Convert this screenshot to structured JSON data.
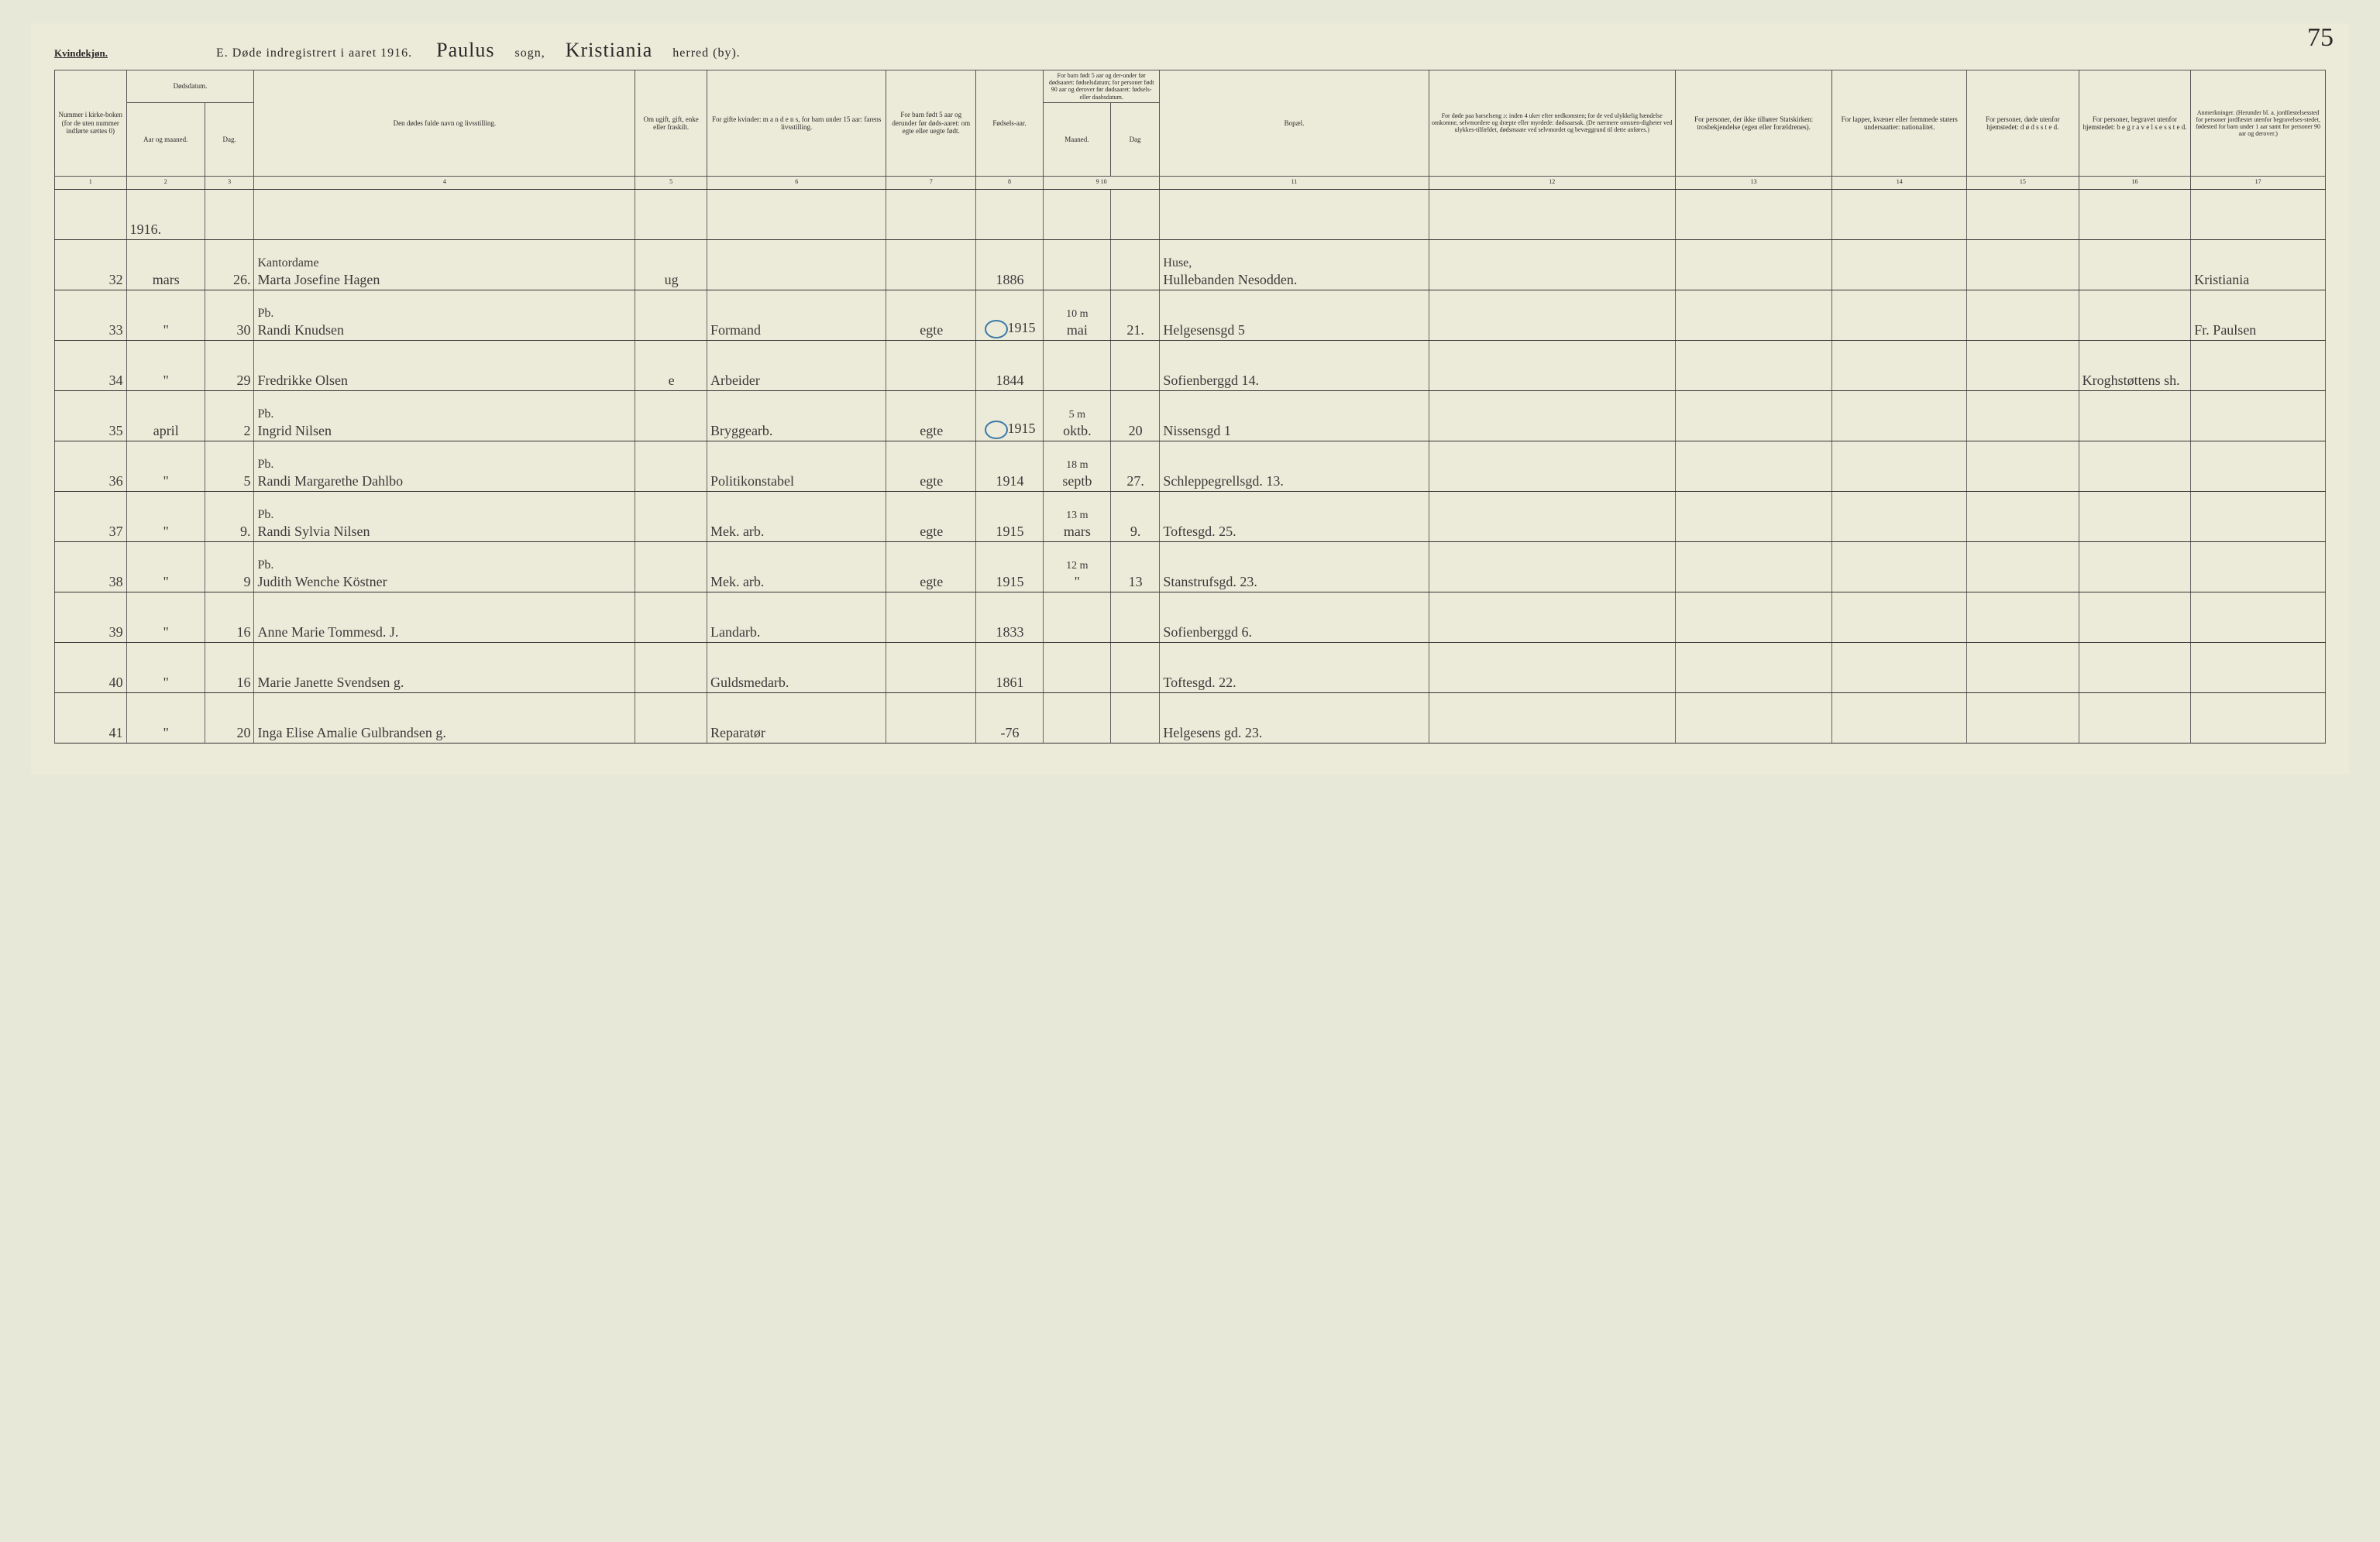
{
  "header": {
    "gender_label": "Kvindekjøn.",
    "title_prefix": "E.",
    "title_main": "Døde indregistrert i aaret 191",
    "year_suffix": "6.",
    "sogn_hw": "Paulus",
    "sogn_label": "sogn,",
    "herred_hw": "Kristiania",
    "herred_label": "herred (by).",
    "page_number": "75"
  },
  "columns": {
    "c1": "Nummer i kirke-boken (for de uten nummer indførte sættes 0)",
    "c2_group": "Dødsdatum.",
    "c2a": "Aar og maaned.",
    "c2b": "Dag.",
    "c4": "Den dødes fulde navn og livsstilling.",
    "c5": "Om ugift, gift, enke eller fraskilt.",
    "c6": "For gifte kvinder: m a n d e n s, for barn under 15 aar: farens livsstilling.",
    "c7": "For barn født 5 aar og derunder før døds-aaret: om egte eller uegte født.",
    "c8": "Fødsels-aar.",
    "c9_10": "For barn født 5 aar og der-under før dødsaaret: fødselsdatum; for personer født 90 aar og derover før dødsaaret: fødsels- eller daabsdatum.",
    "c9": "Maaned.",
    "c10": "Dag",
    "c11": "Bopæl.",
    "c12": "For døde paa barselseng ɔ: inden 4 uker efter nedkomsten; for de ved ulykkelig hændelse omkomne, selvmordere og dræpte eller myrdede: dødsaarsak. (De nærmere omstæn-digheter ved ulykkes-tilfældet, dødsmaate ved selvmordet og bevæggrund til dette anføres.)",
    "c13": "For personer, der ikke tilhører Statskirken: trosbekjendelse (egen eller forældrenes).",
    "c14": "For lapper, kvæner eller fremmede staters undersaatter: nationalitet.",
    "c15": "For personer, døde utenfor hjemstedet: d ø d s s t e d.",
    "c16": "For personer, begravet utenfor hjemstedet: b e g r a v e l s e s s t e d.",
    "c17": "Anmerkninger. (Herunder bl. a. jordfæstelsessted for personer jordfæstet utenfor begravelses-stedet, fødested for barn under 1 aar samt for personer 90 aar og derover.)"
  },
  "colnums": [
    "1",
    "2",
    "3",
    "4",
    "5",
    "6",
    "7",
    "8",
    "9",
    "10",
    "11",
    "12",
    "13",
    "14",
    "15",
    "16",
    "17"
  ],
  "year_in_table": "1916.",
  "rows": [
    {
      "n": "32",
      "mo": "mars",
      "d": "26.",
      "occ": "Kantordame",
      "name": "Marta Josefine Hagen",
      "c5": "ug",
      "c6": "",
      "c7": "",
      "c8": "1886",
      "c9": "",
      "c10": "",
      "c11_top": "Huse,",
      "c11": "Hullebanden Nesodden.",
      "c15": "",
      "c16": "",
      "c17": "Kristiania"
    },
    {
      "n": "33",
      "mo": "\"",
      "d": "30",
      "occ": "Pb.",
      "name": "Randi Knudsen",
      "c5": "",
      "c6": "Formand",
      "c7": "egte",
      "c8": "1915",
      "c9": "mai",
      "c10": "21.",
      "ann": "10 m",
      "c11": "Helgesensgd 5",
      "c17": "Fr. Paulsen"
    },
    {
      "n": "34",
      "mo": "\"",
      "d": "29",
      "occ": "",
      "name": "Fredrikke Olsen",
      "c5": "e",
      "c6": "Arbeider",
      "c7": "",
      "c8": "1844",
      "c9": "",
      "c10": "",
      "c11": "Sofienberggd 14.",
      "c15": "",
      "c16": "Kroghstøttens sh."
    },
    {
      "n": "35",
      "mo": "april",
      "d": "2",
      "occ": "Pb.",
      "name": "Ingrid Nilsen",
      "c5": "",
      "c6": "Bryggearb.",
      "c7": "egte",
      "c8": "1915",
      "c9": "oktb.",
      "c10": "20",
      "ann": "5 m",
      "c11": "Nissensgd 1"
    },
    {
      "n": "36",
      "mo": "\"",
      "d": "5",
      "occ": "Pb.",
      "name": "Randi Margarethe Dahlbo",
      "c5": "",
      "c6": "Politikonstabel",
      "c7": "egte",
      "c8": "1914",
      "c9": "septb",
      "c10": "27.",
      "ann": "18 m",
      "c11": "Schleppegrellsgd. 13."
    },
    {
      "n": "37",
      "mo": "\"",
      "d": "9.",
      "occ": "Pb.",
      "name": "Randi Sylvia Nilsen",
      "c5": "",
      "c6": "Mek. arb.",
      "c7": "egte",
      "c8": "1915",
      "c9": "mars",
      "c10": "9.",
      "ann": "13 m",
      "c11": "Toftesgd. 25."
    },
    {
      "n": "38",
      "mo": "\"",
      "d": "9",
      "occ": "Pb.",
      "name": "Judith Wenche Köstner",
      "c5": "",
      "c6": "Mek. arb.",
      "c7": "egte",
      "c8": "1915",
      "c9": "\"",
      "c10": "13",
      "ann": "12 m",
      "c11": "Stanstrufsgd. 23."
    },
    {
      "n": "39",
      "mo": "\"",
      "d": "16",
      "occ": "",
      "name": "Anne Marie Tommesd. J.",
      "c5": "",
      "c6": "Landarb.",
      "c7": "",
      "c8": "1833",
      "c9": "",
      "c10": "",
      "c11": "Sofienberggd 6."
    },
    {
      "n": "40",
      "mo": "\"",
      "d": "16",
      "occ": "",
      "name": "Marie Janette Svendsen g.",
      "c5": "",
      "c6": "Guldsmedarb.",
      "c7": "",
      "c8": "1861",
      "c9": "",
      "c10": "",
      "c11": "Toftesgd. 22."
    },
    {
      "n": "41",
      "mo": "\"",
      "d": "20",
      "occ": "",
      "name": "Inga Elise Amalie Gulbrandsen g.",
      "c5": "",
      "c6": "Reparatør",
      "c7": "",
      "c8": "-76",
      "c9": "",
      "c10": "",
      "c11": "Helgesens gd. 23."
    }
  ],
  "col_widths_pct": [
    3.2,
    3.5,
    2.2,
    17,
    3.2,
    8,
    4,
    3,
    3,
    2.2,
    12,
    11,
    7,
    6,
    5,
    5,
    6
  ]
}
